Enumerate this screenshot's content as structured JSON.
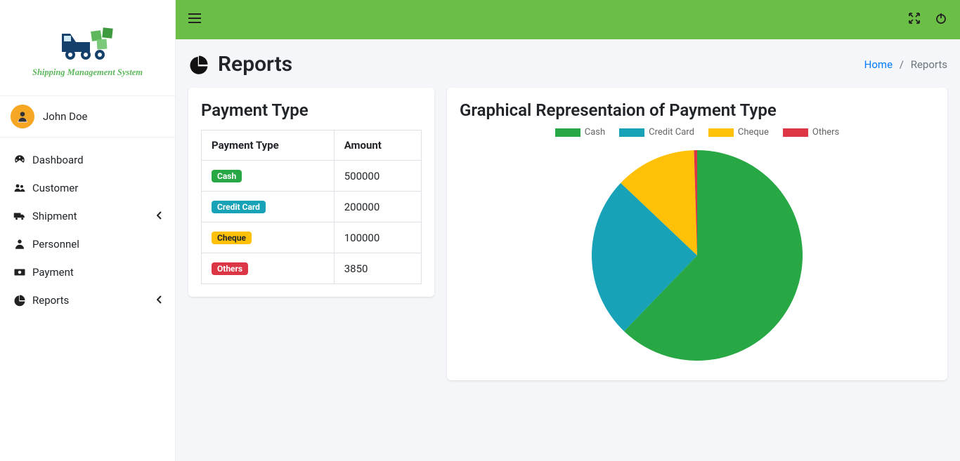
{
  "brand": {
    "text": "Shipping Management System",
    "color": "#5db75d"
  },
  "user": {
    "name": "John Doe"
  },
  "sidebar": {
    "items": [
      {
        "icon": "dashboard",
        "label": "Dashboard",
        "caret": false
      },
      {
        "icon": "users",
        "label": "Customer",
        "caret": false
      },
      {
        "icon": "truck",
        "label": "Shipment",
        "caret": true
      },
      {
        "icon": "person",
        "label": "Personnel",
        "caret": false
      },
      {
        "icon": "money",
        "label": "Payment",
        "caret": false
      },
      {
        "icon": "chart",
        "label": "Reports",
        "caret": true
      }
    ]
  },
  "page": {
    "title": "Reports",
    "breadcrumb": {
      "home": "Home",
      "current": "Reports"
    }
  },
  "payment_table": {
    "title": "Payment Type",
    "columns": [
      "Payment Type",
      "Amount"
    ],
    "rows": [
      {
        "label": "Cash",
        "badge_color": "#28a745",
        "amount": "500000"
      },
      {
        "label": "Credit Card",
        "badge_color": "#17a2b8",
        "amount": "200000"
      },
      {
        "label": "Cheque",
        "badge_color": "#ffc107",
        "amount": "100000"
      },
      {
        "label": "Others",
        "badge_color": "#dc3545",
        "amount": "3850"
      }
    ]
  },
  "chart": {
    "type": "pie",
    "title": "Graphical Representaion of Payment Type",
    "labels": [
      "Cash",
      "Credit Card",
      "Cheque",
      "Others"
    ],
    "values": [
      500000,
      200000,
      100000,
      3850
    ],
    "colors": [
      "#28a745",
      "#17a2b8",
      "#ffc107",
      "#dc3545"
    ],
    "background_color": "#ffffff",
    "radius": 150,
    "start_angle": -90,
    "legend_font_size": 13,
    "legend_text_color": "#666666"
  },
  "colors": {
    "topbar": "#6bbf47",
    "body_bg": "#f4f6f9",
    "link": "#007bff",
    "border": "#dee2e6"
  }
}
